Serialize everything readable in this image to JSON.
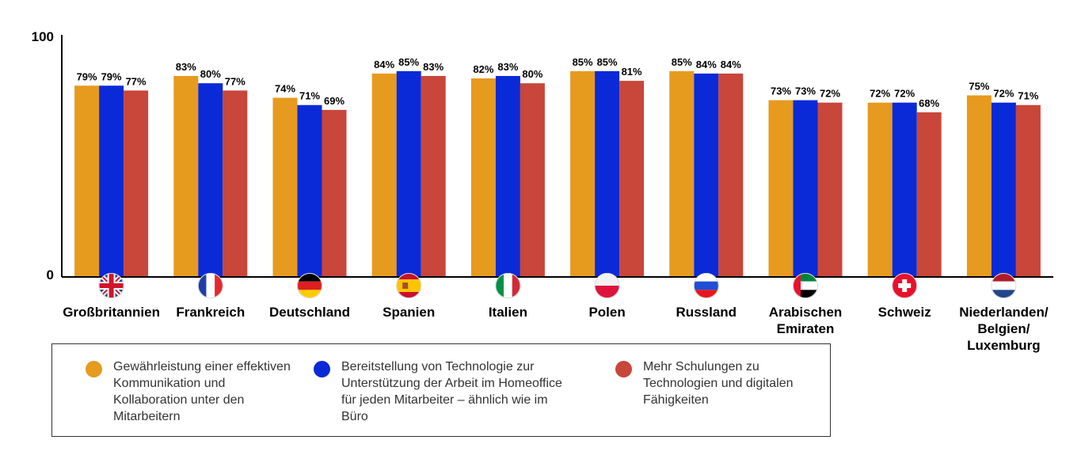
{
  "chart_data": {
    "type": "bar",
    "categories": [
      "Großbritannien",
      "Frankreich",
      "Deutschland",
      "Spanien",
      "Italien",
      "Polen",
      "Russland",
      "Arabischen Emiraten",
      "Schweiz",
      "Niederlanden/ Belgien/ Luxemburg"
    ],
    "series": [
      {
        "name": "Gewährleistung einer effektiven Kommunikation und Kollaboration unter den Mitarbeitern",
        "color": "#e69a1e",
        "values": [
          79,
          83,
          74,
          84,
          82,
          85,
          85,
          73,
          72,
          75
        ]
      },
      {
        "name": "Bereitstellung von Technologie zur Unterstützung der Arbeit im Homeoffice für jeden Mitarbeiter – ähnlich wie im Büro",
        "color": "#0a2ad8",
        "values": [
          79,
          80,
          71,
          85,
          83,
          85,
          84,
          73,
          72,
          72
        ]
      },
      {
        "name": "Mehr Schulungen zu Technologien und digitalen Fähigkeiten",
        "color": "#c8463a",
        "values": [
          77,
          77,
          69,
          83,
          80,
          81,
          84,
          72,
          68,
          71
        ]
      }
    ],
    "value_suffix": "%",
    "ylim": [
      0,
      100
    ],
    "yticks": [
      "0",
      "100"
    ],
    "grid": false,
    "legend_position": "bottom",
    "flags": [
      "flag-uk-icon",
      "flag-france-icon",
      "flag-germany-icon",
      "flag-spain-icon",
      "flag-italy-icon",
      "flag-poland-icon",
      "flag-russia-icon",
      "flag-uae-icon",
      "flag-switzerland-icon",
      "flag-netherlands-icon"
    ],
    "colors": {
      "axis": "#000000",
      "text": "#000000"
    }
  }
}
